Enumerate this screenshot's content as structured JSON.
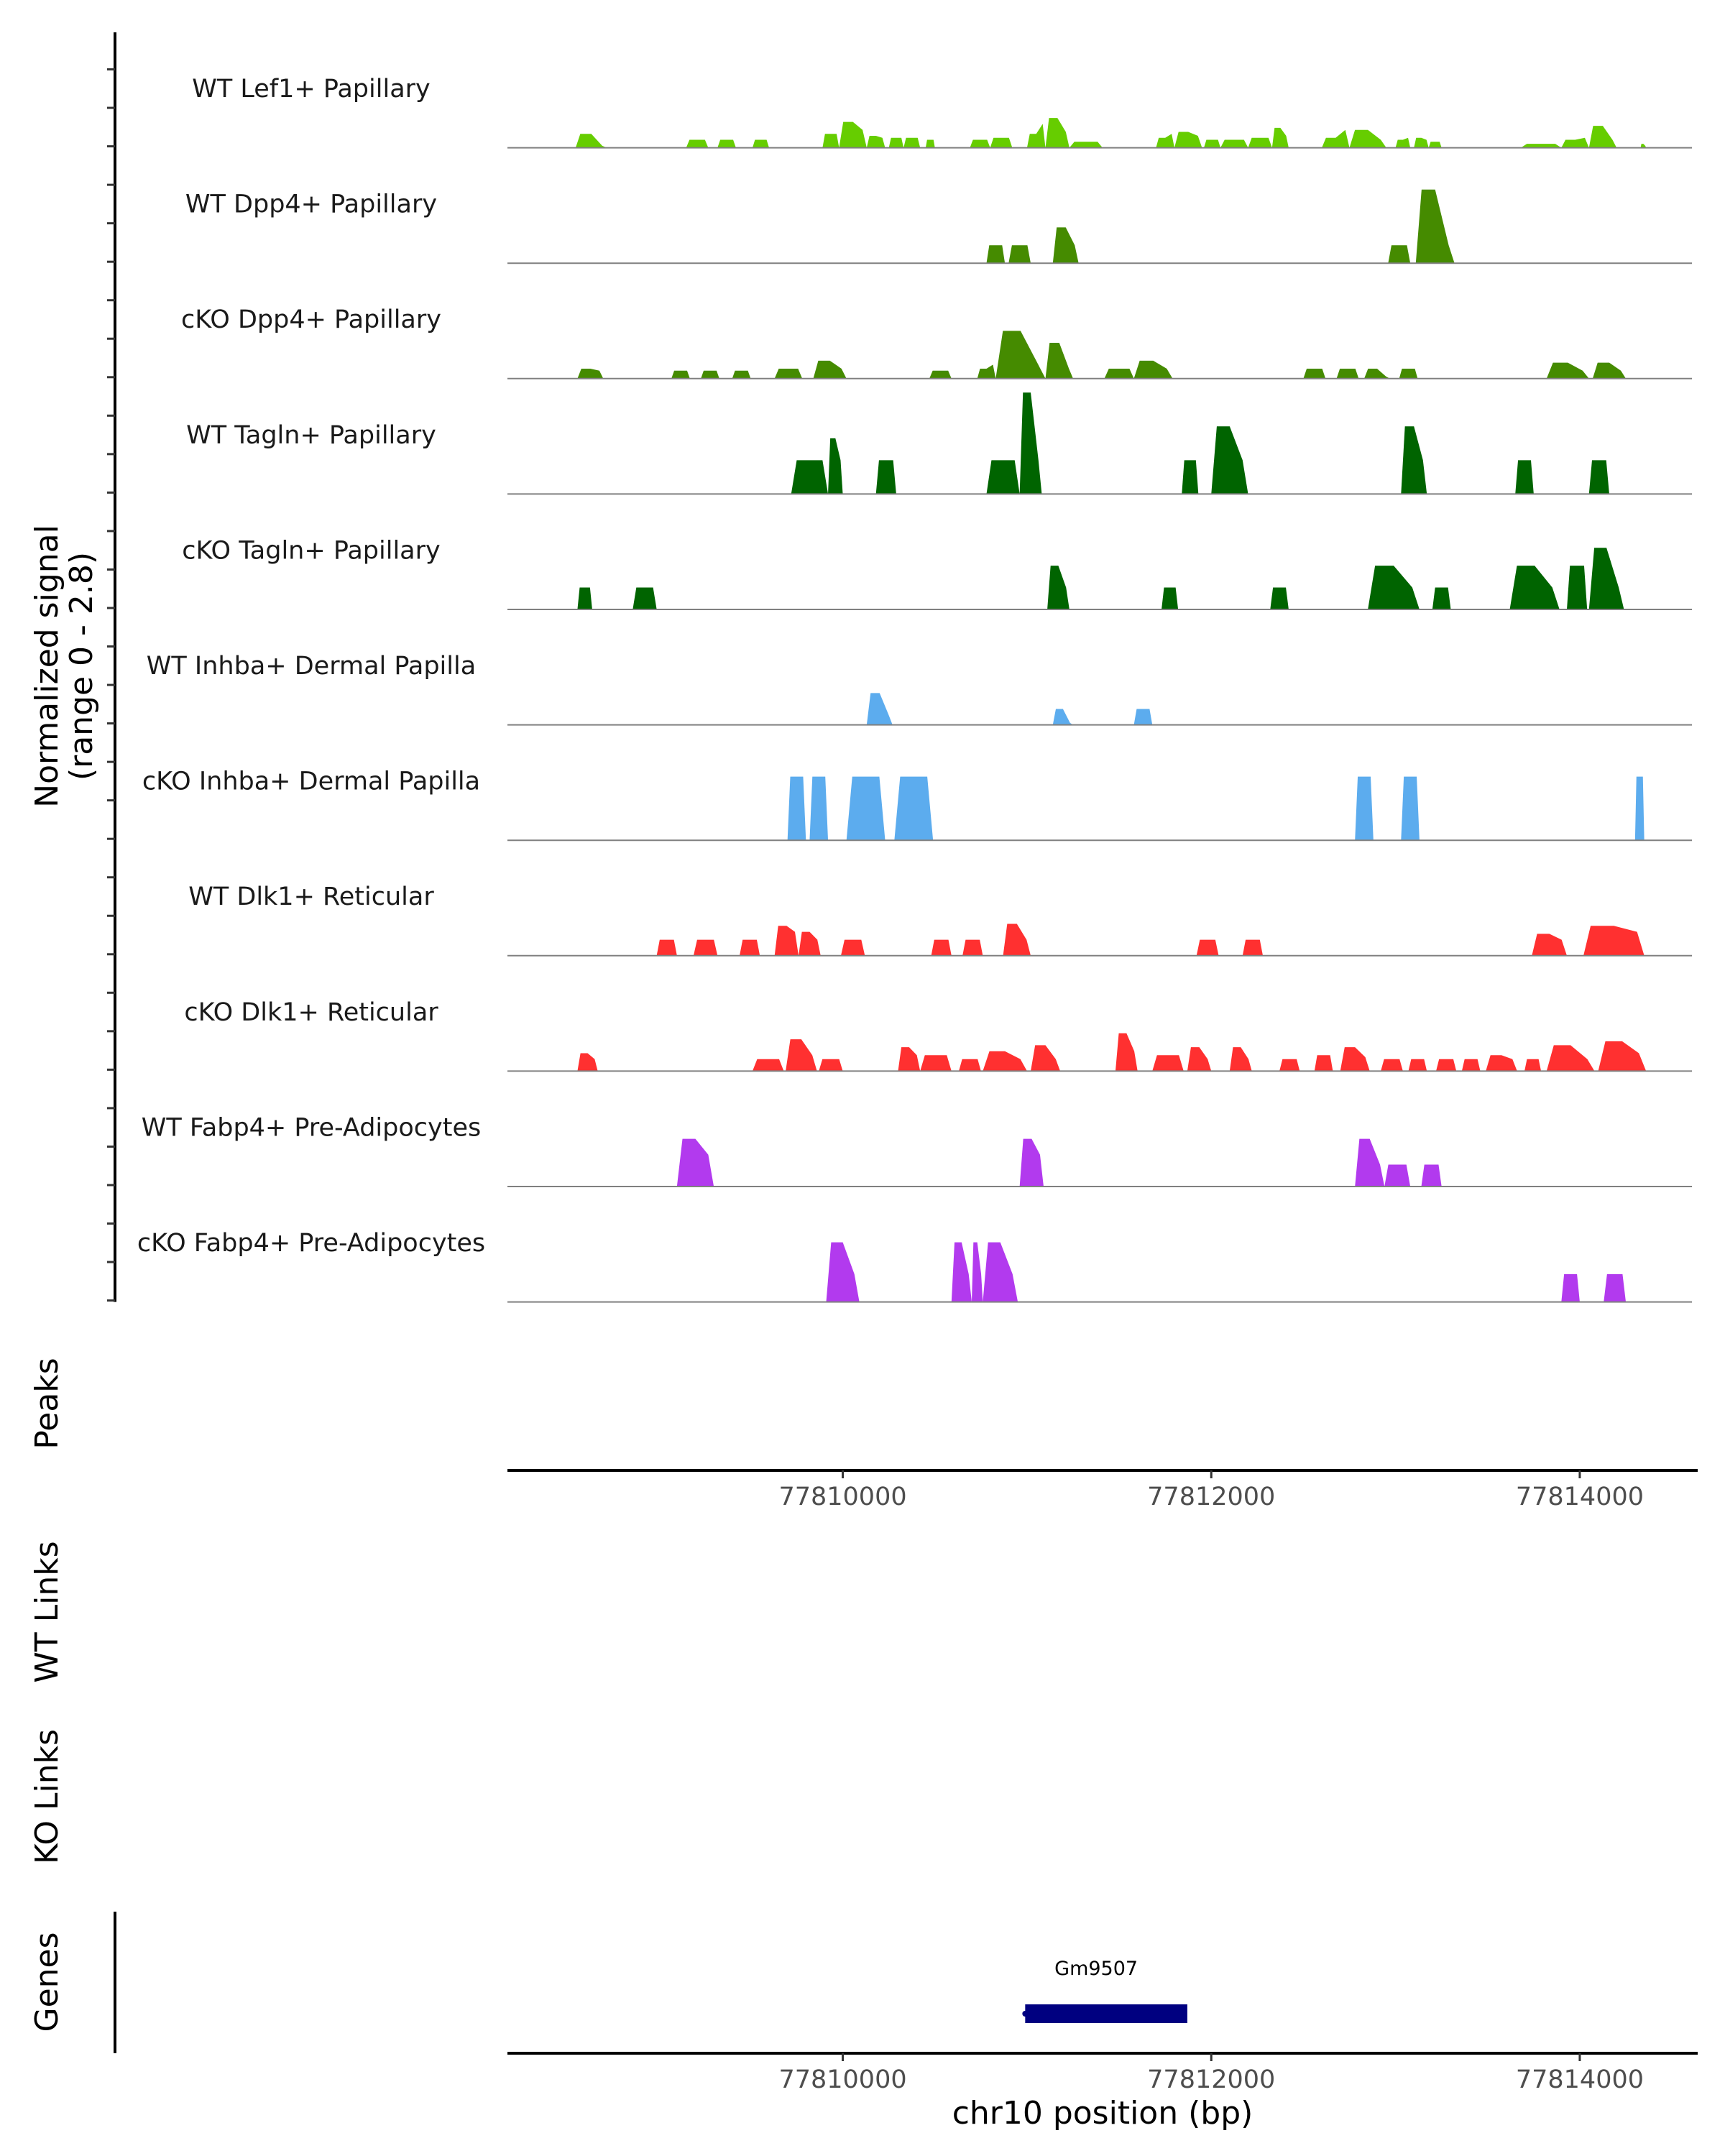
{
  "chart_data": {
    "type": "area",
    "title": "",
    "ylabel": "Normalized signal\n(range 0 - 2.8)",
    "ylabel_lines": [
      "Normalized signal",
      "(range 0 - 2.8)"
    ],
    "ylim": [
      0,
      2.8
    ],
    "xlabel": "chr10 position (bp)",
    "xlim": [
      77808180,
      77814640
    ],
    "xticks": [
      77810000,
      77812000,
      77814000
    ],
    "xtick_labels": [
      "77810000",
      "77812000",
      "77814000"
    ],
    "grid": false,
    "series": [
      {
        "name": "WT Lef1+ Papillary",
        "color": "#66CD00",
        "segments": [
          [
            77808550,
            77808720,
            0.35,
            0.05
          ],
          [
            77809150,
            77809270,
            0.2,
            0.2
          ],
          [
            77809320,
            77809420,
            0.2,
            0.2
          ],
          [
            77809510,
            77809600,
            0.2,
            0.2
          ],
          [
            77809890,
            77809980,
            0.35,
            0.35
          ],
          [
            77809980,
            77810130,
            0.65,
            0.45
          ],
          [
            77810130,
            77810230,
            0.3,
            0.25
          ],
          [
            77810250,
            77810330,
            0.25,
            0.25
          ],
          [
            77810330,
            77810420,
            0.25,
            0.25
          ],
          [
            77810450,
            77810500,
            0.2,
            0.2
          ],
          [
            77810690,
            77810800,
            0.2,
            0.2
          ],
          [
            77810800,
            77810920,
            0.25,
            0.25
          ],
          [
            77811000,
            77811100,
            0.35,
            0.6
          ],
          [
            77811100,
            77811230,
            0.75,
            0.4
          ],
          [
            77811230,
            77811410,
            0.15,
            0.15
          ],
          [
            77811700,
            77811800,
            0.25,
            0.35
          ],
          [
            77811800,
            77811950,
            0.4,
            0.3
          ],
          [
            77811960,
            77812050,
            0.2,
            0.2
          ],
          [
            77812050,
            77812200,
            0.2,
            0.2
          ],
          [
            77812200,
            77812330,
            0.25,
            0.25
          ],
          [
            77812330,
            77812420,
            0.5,
            0.3
          ],
          [
            77812600,
            77812750,
            0.25,
            0.45
          ],
          [
            77812750,
            77812950,
            0.45,
            0.2
          ],
          [
            77813000,
            77813080,
            0.2,
            0.25
          ],
          [
            77813100,
            77813180,
            0.25,
            0.2
          ],
          [
            77813180,
            77813250,
            0.15,
            0.15
          ],
          [
            77813680,
            77813900,
            0.1,
            0.1
          ],
          [
            77813900,
            77814050,
            0.2,
            0.25
          ],
          [
            77814050,
            77814200,
            0.55,
            0.2
          ],
          [
            77814330,
            77814360,
            0.1,
            0.05
          ]
        ]
      },
      {
        "name": "WT Dpp4+ Papillary",
        "color": "#458B00",
        "segments": [
          [
            77810780,
            77810880,
            0.45,
            0.45
          ],
          [
            77810900,
            77811020,
            0.45,
            0.45
          ],
          [
            77811140,
            77811280,
            0.9,
            0.45
          ],
          [
            77812960,
            77813080,
            0.45,
            0.45
          ],
          [
            77813110,
            77813320,
            1.85,
            0.45
          ]
        ]
      },
      {
        "name": "cKO Dpp4+ Papillary",
        "color": "#458B00",
        "segments": [
          [
            77808560,
            77808700,
            0.25,
            0.2
          ],
          [
            77809070,
            77809170,
            0.2,
            0.2
          ],
          [
            77809230,
            77809330,
            0.2,
            0.2
          ],
          [
            77809400,
            77809500,
            0.2,
            0.2
          ],
          [
            77809630,
            77809780,
            0.25,
            0.25
          ],
          [
            77809840,
            77810020,
            0.45,
            0.25
          ],
          [
            77810470,
            77810590,
            0.2,
            0.2
          ],
          [
            77810730,
            77810830,
            0.25,
            0.35
          ],
          [
            77810830,
            77811100,
            1.2,
            0.35
          ],
          [
            77811100,
            77811250,
            0.9,
            0.25
          ],
          [
            77811420,
            77811580,
            0.25,
            0.25
          ],
          [
            77811580,
            77811790,
            0.45,
            0.25
          ],
          [
            77812500,
            77812620,
            0.25,
            0.25
          ],
          [
            77812680,
            77812800,
            0.25,
            0.25
          ],
          [
            77812830,
            77812970,
            0.25,
            0.05
          ],
          [
            77813020,
            77813120,
            0.25,
            0.25
          ],
          [
            77813820,
            77814050,
            0.4,
            0.2
          ],
          [
            77814070,
            77814250,
            0.4,
            0.2
          ]
        ]
      },
      {
        "name": "WT Tagln+ Papillary",
        "color": "#006400",
        "segments": [
          [
            77809720,
            77809920,
            0.85,
            0.85
          ],
          [
            77809920,
            77810000,
            1.4,
            0.85
          ],
          [
            77810180,
            77810290,
            0.85,
            0.85
          ],
          [
            77810780,
            77810960,
            0.85,
            0.85
          ],
          [
            77810960,
            77811080,
            2.55,
            0.85
          ],
          [
            77811840,
            77811930,
            0.85,
            0.85
          ],
          [
            77812000,
            77812200,
            1.7,
            0.85
          ],
          [
            77813030,
            77813170,
            1.7,
            0.85
          ],
          [
            77813650,
            77813750,
            0.85,
            0.85
          ],
          [
            77814050,
            77814160,
            0.85,
            0.85
          ]
        ]
      },
      {
        "name": "cKO Tagln+ Papillary",
        "color": "#006400",
        "segments": [
          [
            77808560,
            77808640,
            0.55,
            0.55
          ],
          [
            77808860,
            77808990,
            0.55,
            0.55
          ],
          [
            77811110,
            77811230,
            1.1,
            0.55
          ],
          [
            77811730,
            77811820,
            0.55,
            0.55
          ],
          [
            77812320,
            77812420,
            0.55,
            0.55
          ],
          [
            77812850,
            77813130,
            1.1,
            0.55
          ],
          [
            77813200,
            77813300,
            0.55,
            0.55
          ],
          [
            77813620,
            77813890,
            1.1,
            0.55
          ],
          [
            77813930,
            77814040,
            1.1,
            1.1
          ],
          [
            77814050,
            77814240,
            1.55,
            0.55
          ]
        ]
      },
      {
        "name": "WT Inhba+ Dermal Papilla",
        "color": "#5CACEE",
        "segments": [
          [
            77810130,
            77810270,
            0.8,
            0.25
          ],
          [
            77811140,
            77811250,
            0.4,
            0.05
          ],
          [
            77811580,
            77811680,
            0.4,
            0.4
          ]
        ]
      },
      {
        "name": "cKO Inhba+ Dermal Papilla",
        "color": "#5CACEE",
        "segments": [
          [
            77809700,
            77809800,
            1.6,
            1.6
          ],
          [
            77809820,
            77809920,
            1.6,
            1.6
          ],
          [
            77810020,
            77810230,
            1.6,
            1.6
          ],
          [
            77810280,
            77810490,
            1.6,
            1.6
          ],
          [
            77812780,
            77812880,
            1.6,
            1.6
          ],
          [
            77813030,
            77813130,
            1.6,
            1.6
          ],
          [
            77814300,
            77814350,
            1.6,
            1.6
          ]
        ]
      },
      {
        "name": "WT Dlk1+ Reticular",
        "color": "#FF3030",
        "segments": [
          [
            77808990,
            77809100,
            0.4,
            0.4
          ],
          [
            77809190,
            77809320,
            0.4,
            0.4
          ],
          [
            77809440,
            77809550,
            0.4,
            0.4
          ],
          [
            77809630,
            77809760,
            0.75,
            0.6
          ],
          [
            77809760,
            77809880,
            0.6,
            0.4
          ],
          [
            77809990,
            77810120,
            0.4,
            0.4
          ],
          [
            77810480,
            77810590,
            0.4,
            0.4
          ],
          [
            77810650,
            77810760,
            0.4,
            0.4
          ],
          [
            77810870,
            77811020,
            0.8,
            0.4
          ],
          [
            77811920,
            77812040,
            0.4,
            0.4
          ],
          [
            77812170,
            77812280,
            0.4,
            0.4
          ],
          [
            77813740,
            77813930,
            0.55,
            0.4
          ],
          [
            77814020,
            77814350,
            0.75,
            0.6
          ]
        ]
      },
      {
        "name": "cKO Dlk1+ Reticular",
        "color": "#FF3030",
        "segments": [
          [
            77808560,
            77808670,
            0.45,
            0.3
          ],
          [
            77809510,
            77809680,
            0.3,
            0.3
          ],
          [
            77809690,
            77809860,
            0.8,
            0.4
          ],
          [
            77809870,
            77810000,
            0.3,
            0.3
          ],
          [
            77810300,
            77810420,
            0.6,
            0.4
          ],
          [
            77810420,
            77810590,
            0.4,
            0.4
          ],
          [
            77810630,
            77810750,
            0.3,
            0.3
          ],
          [
            77810760,
            77811000,
            0.5,
            0.3
          ],
          [
            77811020,
            77811180,
            0.65,
            0.3
          ],
          [
            77811480,
            77811600,
            0.95,
            0.5
          ],
          [
            77811680,
            77811850,
            0.4,
            0.4
          ],
          [
            77811870,
            77812000,
            0.6,
            0.3
          ],
          [
            77812100,
            77812220,
            0.6,
            0.3
          ],
          [
            77812370,
            77812480,
            0.3,
            0.3
          ],
          [
            77812560,
            77812660,
            0.4,
            0.4
          ],
          [
            77812700,
            77812860,
            0.6,
            0.35
          ],
          [
            77812920,
            77813040,
            0.3,
            0.3
          ],
          [
            77813070,
            77813170,
            0.3,
            0.3
          ],
          [
            77813220,
            77813330,
            0.3,
            0.3
          ],
          [
            77813360,
            77813460,
            0.3,
            0.3
          ],
          [
            77813490,
            77813660,
            0.4,
            0.3
          ],
          [
            77813700,
            77813790,
            0.3,
            0.3
          ],
          [
            77813820,
            77814080,
            0.65,
            0.3
          ],
          [
            77814100,
            77814360,
            0.75,
            0.45
          ]
        ]
      },
      {
        "name": "WT Fabp4+ Pre-Adipocytes",
        "color": "#B23AEE",
        "segments": [
          [
            77809100,
            77809300,
            1.2,
            0.8
          ],
          [
            77810960,
            77811090,
            1.2,
            0.8
          ],
          [
            77812780,
            77812940,
            1.2,
            0.55
          ],
          [
            77812940,
            77813080,
            0.55,
            0.55
          ],
          [
            77813140,
            77813250,
            0.55,
            0.55
          ]
        ]
      },
      {
        "name": "cKO Fabp4+ Pre-Adipocytes",
        "color": "#B23AEE",
        "segments": [
          [
            77809910,
            77810090,
            1.5,
            0.7
          ],
          [
            77810590,
            77810700,
            1.5,
            0.7
          ],
          [
            77810700,
            77810760,
            1.5,
            0.7
          ],
          [
            77810760,
            77810950,
            1.5,
            0.7
          ],
          [
            77813900,
            77814000,
            0.7,
            0.7
          ],
          [
            77814130,
            77814250,
            0.7,
            0.7
          ]
        ]
      }
    ],
    "side_panels": [
      "Peaks",
      "WT Links",
      "KO Links",
      "Genes"
    ],
    "genes": [
      {
        "name": "Gm9507",
        "start": 77810990,
        "end": 77811870,
        "color": "#000080"
      }
    ]
  }
}
